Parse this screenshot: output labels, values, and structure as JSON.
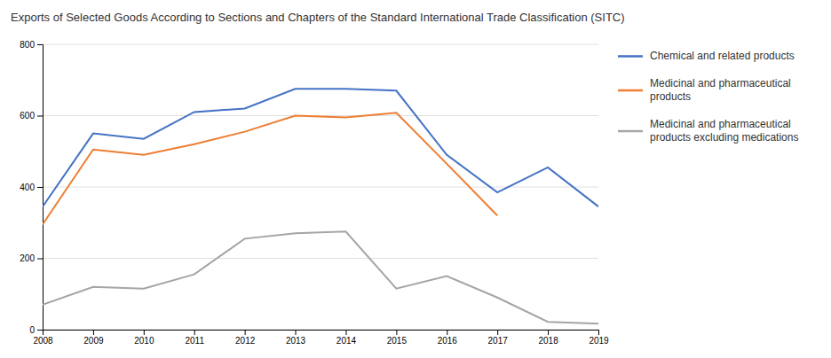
{
  "chart_data": {
    "type": "line",
    "title": "Exports of Selected Goods According to Sections and Chapters of the Standard International Trade Classification (SITC)",
    "x": [
      2008,
      2009,
      2010,
      2011,
      2012,
      2013,
      2014,
      2015,
      2016,
      2017,
      2018,
      2019
    ],
    "xlim": [
      2008,
      2019
    ],
    "xticks": [
      2008,
      2009,
      2010,
      2011,
      2012,
      2013,
      2014,
      2015,
      2016,
      2017,
      2018,
      2019
    ],
    "series": [
      {
        "name": "Chemical and related products",
        "color": "#4472C4",
        "values": [
          345,
          550,
          535,
          610,
          620,
          675,
          675,
          670,
          490,
          385,
          455,
          345
        ]
      },
      {
        "name": "Medicinal and pharmaceutical\nproducts",
        "color": "#ED7D31",
        "values": [
          295,
          505,
          490,
          520,
          555,
          600,
          595,
          608,
          465,
          320,
          null,
          null
        ]
      },
      {
        "name": "Medicinal and pharmaceutical\nproducts excluding medications",
        "color": "#A5A5A5",
        "values": [
          70,
          120,
          115,
          155,
          255,
          270,
          275,
          115,
          150,
          90,
          22,
          17
        ]
      }
    ],
    "ylim": [
      0,
      800
    ],
    "yticks": [
      0,
      200,
      400,
      600,
      800
    ],
    "grid": true,
    "legend": "right"
  }
}
